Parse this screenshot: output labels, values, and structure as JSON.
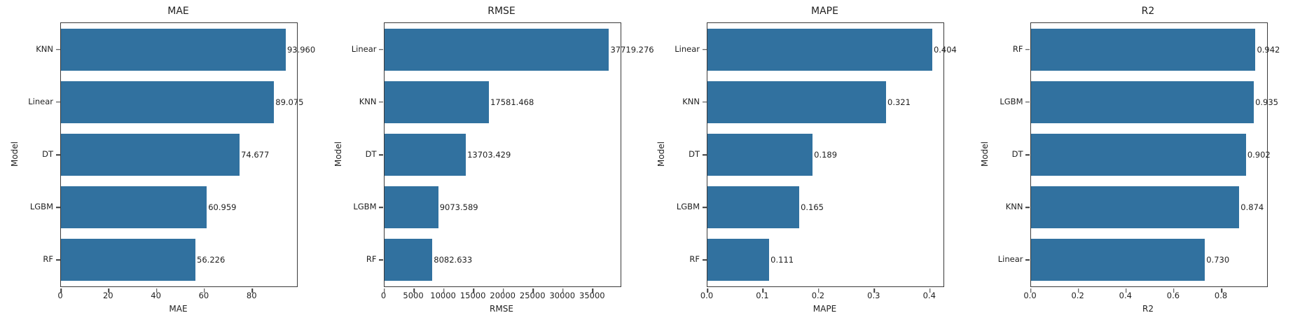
{
  "figure": {
    "background": "#ffffff",
    "bar_color": "#31719f",
    "text_color": "#1f1f1f",
    "spine_color": "#3a3a3a"
  },
  "chart_data": [
    {
      "type": "bar",
      "orientation": "horizontal",
      "title": "MAE",
      "xlabel": "MAE",
      "ylabel": "Model",
      "categories": [
        "KNN",
        "Linear",
        "DT",
        "LGBM",
        "RF"
      ],
      "values": [
        93.96,
        89.075,
        74.677,
        60.959,
        56.226
      ],
      "value_labels": [
        "93.960",
        "89.075",
        "74.677",
        "60.959",
        "56.226"
      ],
      "xlim": [
        0,
        98.66
      ],
      "xticks": [
        0,
        20,
        40,
        60,
        80
      ],
      "xtick_labels": [
        "0",
        "20",
        "40",
        "60",
        "80"
      ],
      "grid": false,
      "legend": null
    },
    {
      "type": "bar",
      "orientation": "horizontal",
      "title": "RMSE",
      "xlabel": "RMSE",
      "ylabel": "Model",
      "categories": [
        "Linear",
        "KNN",
        "DT",
        "LGBM",
        "RF"
      ],
      "values": [
        37719.276,
        17581.468,
        13703.429,
        9073.589,
        8082.633
      ],
      "value_labels": [
        "37719.276",
        "17581.468",
        "13703.429",
        "9073.589",
        "8082.633"
      ],
      "xlim": [
        0,
        39605.2
      ],
      "xticks": [
        0,
        5000,
        10000,
        15000,
        20000,
        25000,
        30000,
        35000
      ],
      "xtick_labels": [
        "0",
        "5000",
        "10000",
        "15000",
        "20000",
        "25000",
        "30000",
        "35000"
      ],
      "grid": false,
      "legend": null
    },
    {
      "type": "bar",
      "orientation": "horizontal",
      "title": "MAPE",
      "xlabel": "MAPE",
      "ylabel": "Model",
      "categories": [
        "Linear",
        "KNN",
        "DT",
        "LGBM",
        "RF"
      ],
      "values": [
        0.404,
        0.321,
        0.189,
        0.165,
        0.111
      ],
      "value_labels": [
        "0.404",
        "0.321",
        "0.189",
        "0.165",
        "0.111"
      ],
      "xlim": [
        0,
        0.4242
      ],
      "xticks": [
        0,
        0.1,
        0.2,
        0.3,
        0.4
      ],
      "xtick_labels": [
        "0.0",
        "0.1",
        "0.2",
        "0.3",
        "0.4"
      ],
      "grid": false,
      "legend": null
    },
    {
      "type": "bar",
      "orientation": "horizontal",
      "title": "R2",
      "xlabel": "R2",
      "ylabel": "Model",
      "categories": [
        "RF",
        "LGBM",
        "DT",
        "KNN",
        "Linear"
      ],
      "values": [
        0.942,
        0.935,
        0.902,
        0.874,
        0.73
      ],
      "value_labels": [
        "0.942",
        "0.935",
        "0.902",
        "0.874",
        "0.730"
      ],
      "xlim": [
        0,
        0.9891
      ],
      "xticks": [
        0,
        0.2,
        0.4,
        0.6,
        0.8
      ],
      "xtick_labels": [
        "0.0",
        "0.2",
        "0.4",
        "0.6",
        "0.8"
      ],
      "grid": false,
      "legend": null
    }
  ]
}
